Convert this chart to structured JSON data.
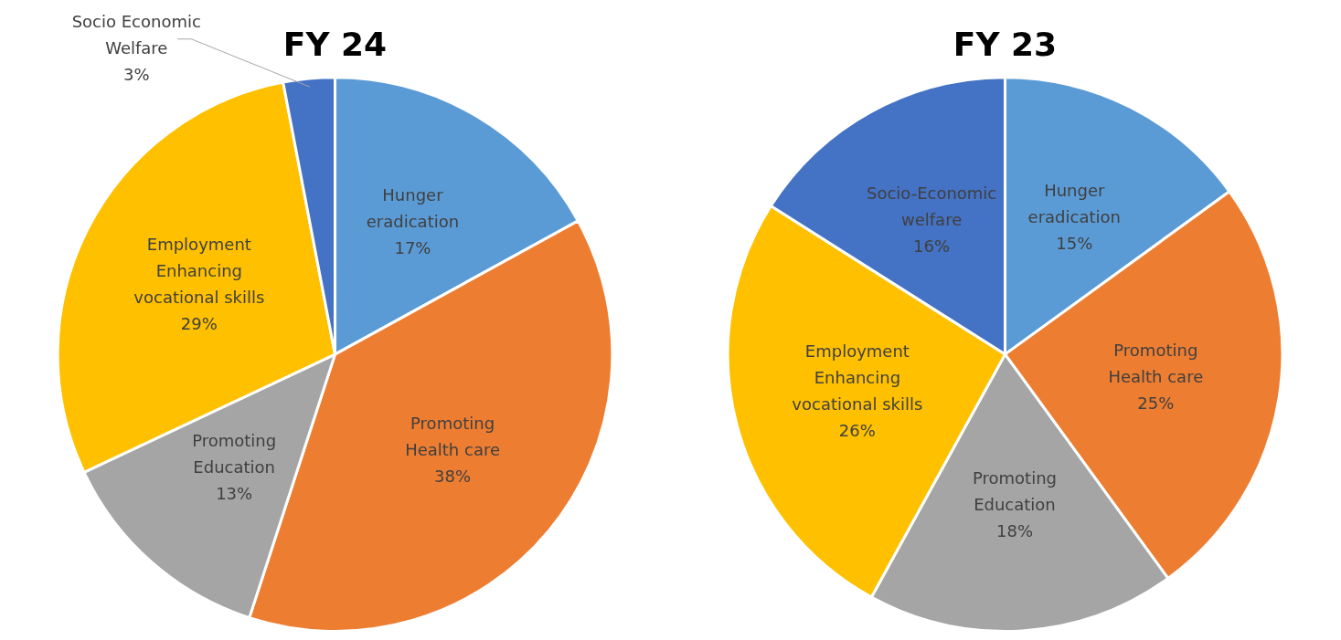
{
  "chart_data": [
    {
      "type": "pie",
      "title": "FY 24",
      "categories": [
        "Hunger eradication",
        "Promoting Health care",
        "Promoting Education",
        "Employment Enhancing vocational skills",
        "Socio Economic Welfare"
      ],
      "values": [
        17,
        38,
        13,
        29,
        3
      ],
      "value_labels": [
        "17%",
        "38%",
        "13%",
        "29%",
        "3%"
      ],
      "colors": [
        "#5b9bd5",
        "#ed7d31",
        "#a5a5a5",
        "#ffc000",
        "#4472c4"
      ],
      "legend": false
    },
    {
      "type": "pie",
      "title": "FY 23",
      "categories": [
        "Hunger eradication",
        "Promoting Health care",
        "Promoting Education",
        "Employment Enhancing vocational skills",
        "Socio-Economic welfare"
      ],
      "values": [
        15,
        25,
        18,
        26,
        16
      ],
      "value_labels": [
        "15%",
        "25%",
        "18%",
        "26%",
        "16%"
      ],
      "colors": [
        "#5b9bd5",
        "#ed7d31",
        "#a5a5a5",
        "#ffc000",
        "#4472c4"
      ],
      "legend": false
    }
  ]
}
